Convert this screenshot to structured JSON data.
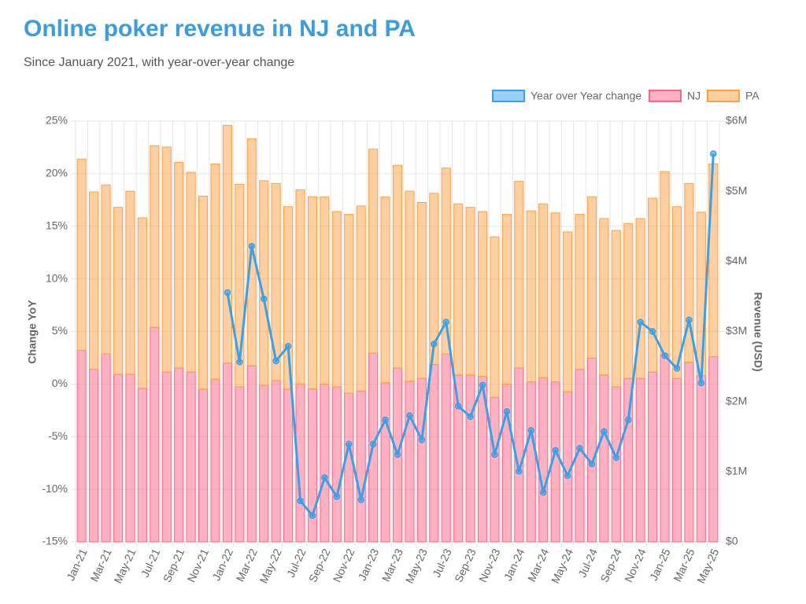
{
  "chart_data": {
    "type": "bar",
    "title": "Online poker revenue in NJ and PA",
    "subtitle": "Since January 2021, with year-over-year change",
    "y_label": "Change YoY",
    "y2_label": "Revenue (USD)",
    "categories": [
      "Jan-21",
      null,
      "Mar-21",
      null,
      "May-21",
      null,
      "Jul-21",
      null,
      "Sep-21",
      null,
      "Nov-21",
      null,
      "Jan-22",
      null,
      "Mar-22",
      null,
      "May-22",
      null,
      "Jul-22",
      null,
      "Sep-22",
      null,
      "Nov-22",
      null,
      "Jan-23",
      null,
      "Mar-23",
      null,
      "May-23",
      null,
      "Jul-23",
      null,
      "Sep-23",
      null,
      "Nov-23",
      null,
      "Jan-24",
      null,
      "Mar-24",
      null,
      "May-24",
      null,
      "Jul-24",
      null,
      "Sep-24",
      null,
      "Nov-24",
      null,
      "Jan-25",
      null,
      "Mar-25",
      null,
      "May-25"
    ],
    "series": [
      {
        "name": "Year over Year change",
        "type": "line",
        "color": "#36a2eb",
        "values": [
          null,
          null,
          null,
          null,
          null,
          null,
          null,
          null,
          null,
          null,
          null,
          null,
          8.7,
          2.1,
          13.1,
          8.1,
          2.2,
          3.6,
          -11.1,
          -12.5,
          -8.9,
          -10.7,
          -5.7,
          -11.0,
          -5.7,
          -3.4,
          -6.7,
          -3.0,
          -5.3,
          3.8,
          5.9,
          -2.1,
          -3.1,
          -0.1,
          -6.7,
          -2.6,
          -8.3,
          -4.4,
          -10.3,
          -6.3,
          -8.7,
          -6.1,
          -7.6,
          -4.5,
          -7.0,
          -3.4,
          5.9,
          5.0,
          2.7,
          1.5,
          6.1,
          0.1,
          21.9
        ]
      },
      {
        "name": "NJ",
        "type": "bar",
        "axis": "y2",
        "color": "#ff6384",
        "values": [
          2730000,
          2460000,
          2680000,
          2390000,
          2390000,
          2190000,
          3060000,
          2420000,
          2480000,
          2420000,
          2180000,
          2320000,
          2550000,
          2210000,
          2510000,
          2230000,
          2300000,
          2180000,
          2250000,
          2180000,
          2250000,
          2210000,
          2120000,
          2150000,
          2690000,
          2270000,
          2480000,
          2290000,
          2330000,
          2530000,
          2680000,
          2380000,
          2380000,
          2360000,
          2060000,
          2250000,
          2480000,
          2280000,
          2340000,
          2280000,
          2140000,
          2460000,
          2620000,
          2380000,
          2210000,
          2330000,
          2330000,
          2420000,
          2680000,
          2330000,
          2560000,
          2370000,
          2640000
        ]
      },
      {
        "name": "PA",
        "type": "bar",
        "axis": "y2",
        "color": "#ff9f40",
        "values": [
          2730000,
          2530000,
          2410000,
          2380000,
          2610000,
          2430000,
          2590000,
          3210000,
          2930000,
          2850000,
          2750000,
          3070000,
          3390000,
          2890000,
          3240000,
          2920000,
          2810000,
          2600000,
          2770000,
          2740000,
          2670000,
          2500000,
          2550000,
          2640000,
          2910000,
          2650000,
          2890000,
          2710000,
          2510000,
          2440000,
          2650000,
          2440000,
          2390000,
          2350000,
          2290000,
          2420000,
          2660000,
          2440000,
          2480000,
          2410000,
          2280000,
          2210000,
          2300000,
          2230000,
          2230000,
          2210000,
          2280000,
          2480000,
          2600000,
          2450000,
          2550000,
          2330000,
          2750000
        ]
      }
    ],
    "ylim": [
      -15,
      25
    ],
    "yticks": [
      {
        "value": -15,
        "label": "-15%"
      },
      {
        "value": -10,
        "label": "-10%"
      },
      {
        "value": -5,
        "label": "-5%"
      },
      {
        "value": 0,
        "label": "0%"
      },
      {
        "value": 5,
        "label": "5%"
      },
      {
        "value": 10,
        "label": "10%"
      },
      {
        "value": 15,
        "label": "15%"
      },
      {
        "value": 20,
        "label": "20%"
      },
      {
        "value": 25,
        "label": "25%"
      }
    ],
    "y2lim": [
      0,
      6000000
    ],
    "y2ticks": [
      {
        "value": 0,
        "label": "$0"
      },
      {
        "value": 1000000,
        "label": "$1M"
      },
      {
        "value": 2000000,
        "label": "$2M"
      },
      {
        "value": 3000000,
        "label": "$3M"
      },
      {
        "value": 4000000,
        "label": "$4M"
      },
      {
        "value": 5000000,
        "label": "$5M"
      },
      {
        "value": 6000000,
        "label": "$6M"
      }
    ],
    "stacked": true,
    "grid": true,
    "legend": "top-right"
  }
}
